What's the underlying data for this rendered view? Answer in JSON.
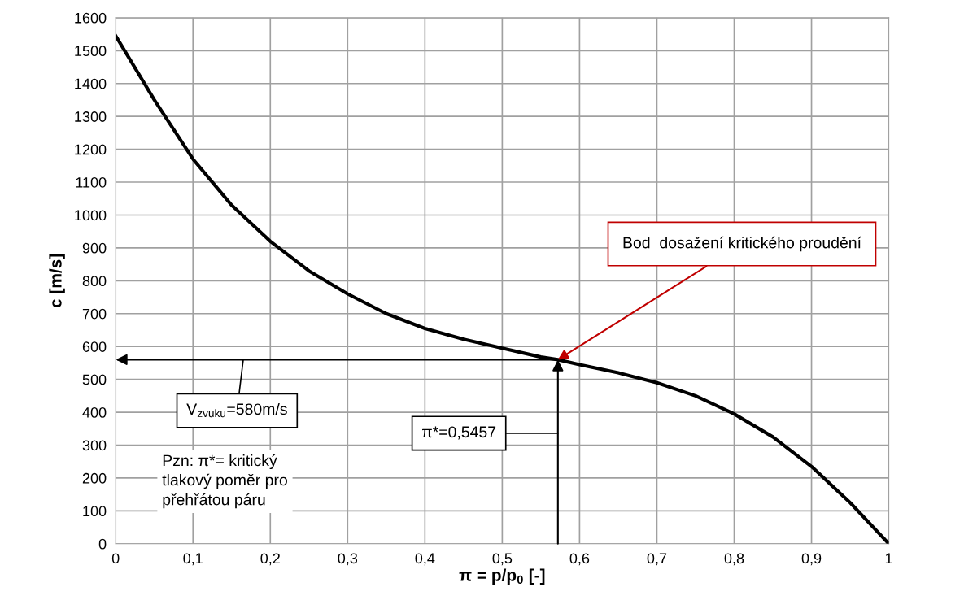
{
  "chart_data": {
    "type": "line",
    "xlabel": "π = p/p$_{0}$ [-]",
    "ylabel": "c [m/s]",
    "x": [
      0,
      0.05,
      0.1,
      0.15,
      0.2,
      0.25,
      0.3,
      0.35,
      0.4,
      0.45,
      0.5,
      0.55,
      0.572,
      0.6,
      0.65,
      0.7,
      0.75,
      0.8,
      0.85,
      0.9,
      0.95,
      1.0
    ],
    "series": [
      {
        "color": "#000000",
        "values": [
          1545,
          1350,
          1170,
          1030,
          920,
          830,
          760,
          700,
          655,
          622,
          595,
          568,
          560,
          545,
          520,
          490,
          450,
          395,
          325,
          235,
          125,
          0
        ]
      }
    ],
    "xlim": [
      0,
      1
    ],
    "ylim": [
      0,
      1600
    ],
    "xticks": [
      0,
      {
        "value": 0.1,
        "label": "0,1"
      },
      {
        "value": 0.2,
        "label": "0,2"
      },
      {
        "value": 0.3,
        "label": "0,3"
      },
      {
        "value": 0.4,
        "label": "0,4"
      },
      {
        "value": 0.5,
        "label": "0,5"
      },
      {
        "value": 0.6,
        "label": "0,6"
      },
      {
        "value": 0.7,
        "label": "0,7"
      },
      {
        "value": 0.8,
        "label": "0,8"
      },
      {
        "value": 0.9,
        "label": "0,9"
      },
      1
    ],
    "yticks": [
      0,
      100,
      200,
      300,
      400,
      500,
      600,
      700,
      800,
      900,
      1000,
      1100,
      1200,
      1300,
      1400,
      1500,
      1600
    ],
    "grid": true,
    "marker": "none",
    "line_style": "solid",
    "annotations": [
      "V$_{zvuku}$=580m/s",
      "π*=0,5457",
      "Pzn: π*= kritický\ntlakový poměr pro\npřehřátou páru",
      {
        "text": "Bod  dosažení kritického proudění",
        "x": 0.572,
        "y": 560
      }
    ]
  }
}
